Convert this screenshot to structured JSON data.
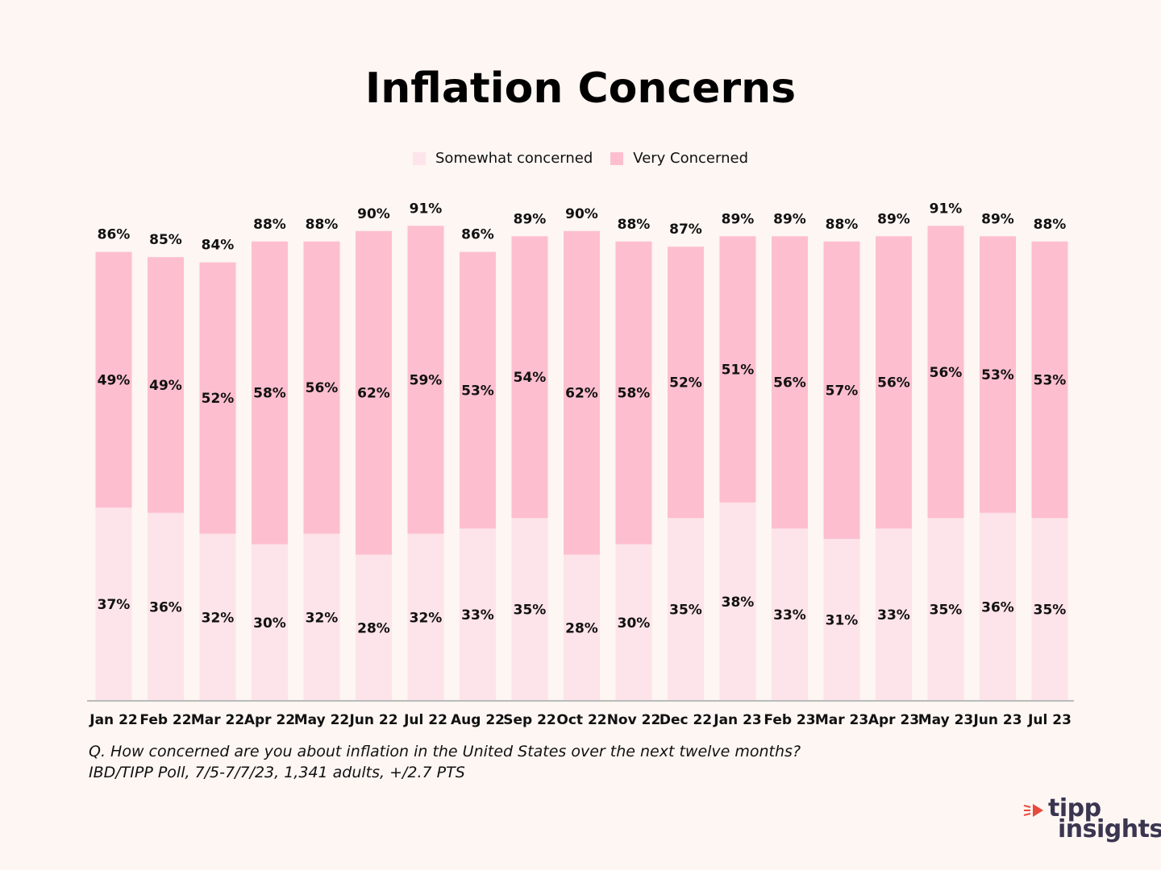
{
  "title": "Inflation Concerns",
  "legend": {
    "somewhat": "Somewhat concerned",
    "very": "Very Concerned"
  },
  "colors": {
    "somewhat": "#fde4ea",
    "very": "#fdbfcf",
    "background": "#fdf6f3",
    "baseline": "#bbbbbb",
    "text": "#111111"
  },
  "chart_data": {
    "type": "bar",
    "stacked": true,
    "categories": [
      "Jan 22",
      "Feb 22",
      "Mar 22",
      "Apr 22",
      "May 22",
      "Jun 22",
      "Jul 22",
      "Aug 22",
      "Sep 22",
      "Oct 22",
      "Nov 22",
      "Dec 22",
      "Jan 23",
      "Feb 23",
      "Mar 23",
      "Apr 23",
      "May 23",
      "Jun 23",
      "Jul 23"
    ],
    "series": [
      {
        "name": "Somewhat concerned",
        "values": [
          37,
          36,
          32,
          30,
          32,
          28,
          32,
          33,
          35,
          28,
          30,
          35,
          38,
          33,
          31,
          33,
          35,
          36,
          35
        ]
      },
      {
        "name": "Very Concerned",
        "values": [
          49,
          49,
          52,
          58,
          56,
          62,
          59,
          53,
          54,
          62,
          58,
          52,
          51,
          56,
          57,
          56,
          56,
          53,
          53
        ]
      }
    ],
    "totals": [
      86,
      85,
      84,
      88,
      88,
      90,
      91,
      86,
      89,
      90,
      88,
      87,
      89,
      89,
      88,
      89,
      91,
      89,
      88
    ],
    "value_suffix": "%",
    "ylim": [
      0,
      100
    ],
    "grid": false,
    "legend_position": "top-center"
  },
  "footnote": {
    "question": "Q. How concerned are you about inflation in the United States over the next twelve months?",
    "source": "IBD/TIPP Poll, 7/5-7/7/23, 1,341 adults, +/2.7 PTS"
  },
  "logo": {
    "line1": "tipp",
    "line2": "insights"
  }
}
